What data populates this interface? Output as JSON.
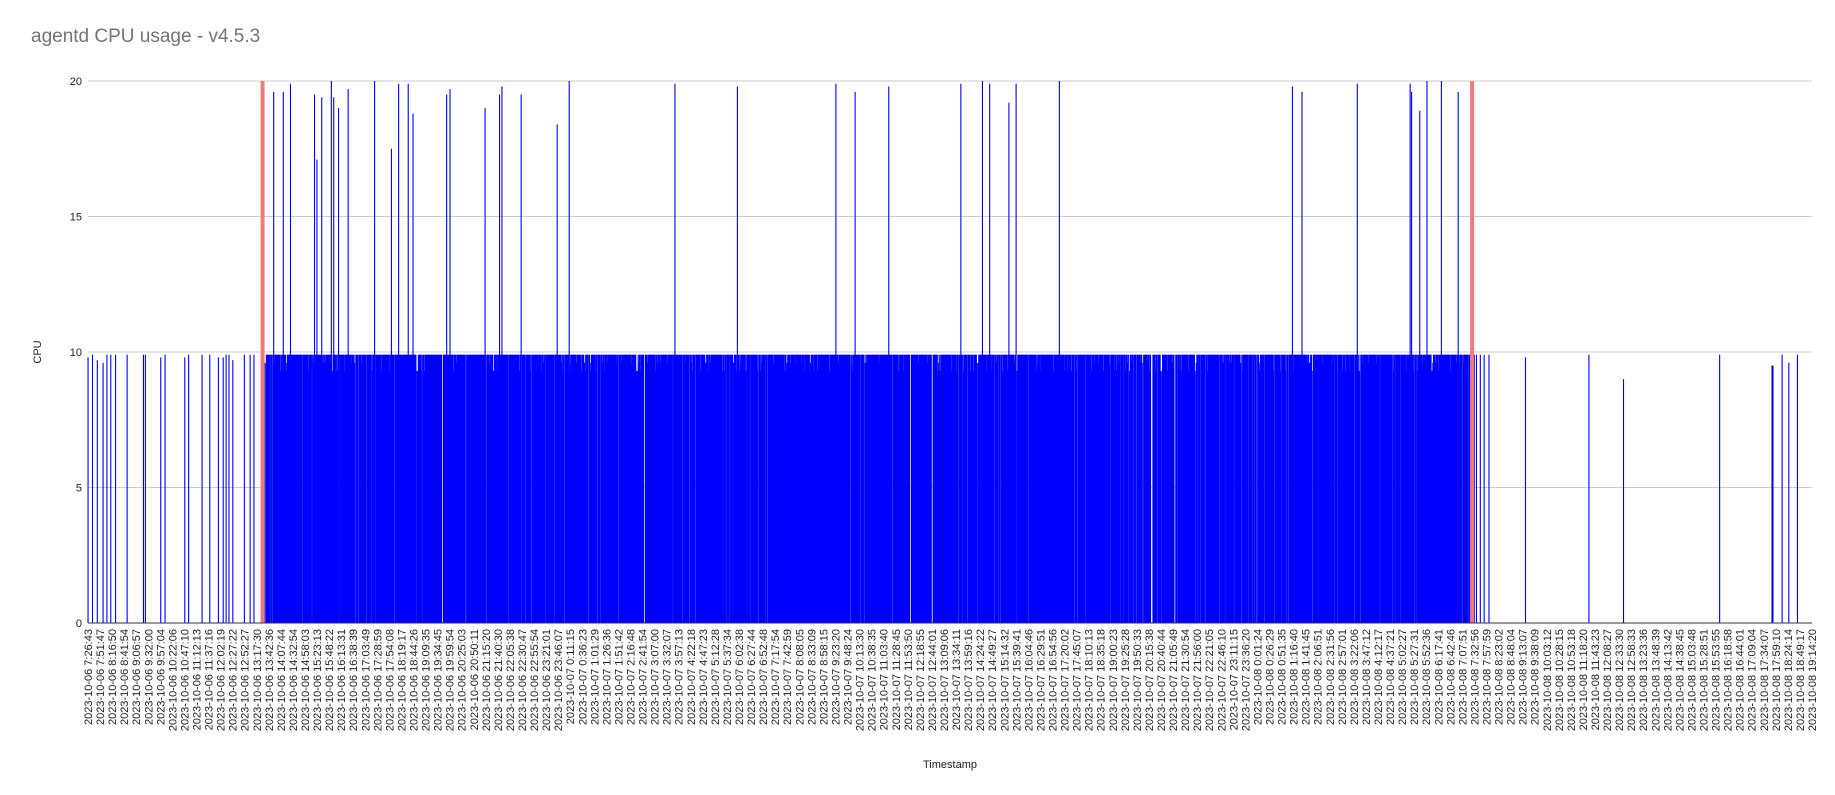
{
  "chart_data": {
    "type": "bar",
    "title": "agentd CPU usage - v4.5.3",
    "xlabel": "Timestamp",
    "ylabel": "CPU",
    "ylim": [
      0,
      20
    ],
    "yticks": [
      0,
      5,
      10,
      15,
      20
    ],
    "grid": true,
    "legend": "none",
    "bar_color": "#0000ff",
    "marker_color": "#ef7a7a",
    "xlim": [
      "2023-10-06 7:26:43",
      "2023-10-08 19:14:20"
    ],
    "x_tick_labels": [
      "2023-10-06 7:26:43",
      "2023-10-06 7:51:47",
      "2023-10-06 8:16:50",
      "2023-10-06 8:41:54",
      "2023-10-06 9:06:57",
      "2023-10-06 9:32:00",
      "2023-10-06 9:57:04",
      "2023-10-06 10:22:06",
      "2023-10-06 10:47:10",
      "2023-10-06 11:12:13",
      "2023-10-06 11:37:16",
      "2023-10-06 12:02:19",
      "2023-10-06 12:27:22",
      "2023-10-06 12:52:27",
      "2023-10-06 13:17:30",
      "2023-10-06 13:42:36",
      "2023-10-06 14:07:44",
      "2023-10-06 14:32:54",
      "2023-10-06 14:58:03",
      "2023-10-06 15:23:13",
      "2023-10-06 15:48:22",
      "2023-10-06 16:13:31",
      "2023-10-06 16:38:39",
      "2023-10-06 17:03:49",
      "2023-10-06 17:28:59",
      "2023-10-06 17:54:08",
      "2023-10-06 18:19:17",
      "2023-10-06 18:44:26",
      "2023-10-06 19:09:35",
      "2023-10-06 19:34:45",
      "2023-10-06 19:59:54",
      "2023-10-06 20:25:03",
      "2023-10-06 20:50:11",
      "2023-10-06 21:15:20",
      "2023-10-06 21:40:30",
      "2023-10-06 22:05:38",
      "2023-10-06 22:30:47",
      "2023-10-06 22:55:54",
      "2023-10-06 23:21:01",
      "2023-10-06 23:46:07",
      "2023-10-07 0:11:15",
      "2023-10-07 0:36:23",
      "2023-10-07 1:01:29",
      "2023-10-07 1:26:36",
      "2023-10-07 1:51:42",
      "2023-10-07 2:16:48",
      "2023-10-07 2:41:54",
      "2023-10-07 3:07:00",
      "2023-10-07 3:32:07",
      "2023-10-07 3:57:13",
      "2023-10-07 4:22:18",
      "2023-10-07 4:47:23",
      "2023-10-07 5:12:28",
      "2023-10-07 5:37:34",
      "2023-10-07 6:02:38",
      "2023-10-07 6:27:44",
      "2023-10-07 6:52:48",
      "2023-10-07 7:17:54",
      "2023-10-07 7:42:59",
      "2023-10-07 8:08:05",
      "2023-10-07 8:33:09",
      "2023-10-07 8:58:15",
      "2023-10-07 9:23:20",
      "2023-10-07 9:48:24",
      "2023-10-07 10:13:30",
      "2023-10-07 10:38:35",
      "2023-10-07 11:03:40",
      "2023-10-07 11:28:45",
      "2023-10-07 11:53:50",
      "2023-10-07 12:18:55",
      "2023-10-07 12:44:01",
      "2023-10-07 13:09:06",
      "2023-10-07 13:34:11",
      "2023-10-07 13:59:16",
      "2023-10-07 14:24:22",
      "2023-10-07 14:49:27",
      "2023-10-07 15:14:32",
      "2023-10-07 15:39:41",
      "2023-10-07 16:04:46",
      "2023-10-07 16:29:51",
      "2023-10-07 16:54:56",
      "2023-10-07 17:20:02",
      "2023-10-07 17:45:07",
      "2023-10-07 18:10:13",
      "2023-10-07 18:35:18",
      "2023-10-07 19:00:23",
      "2023-10-07 19:25:28",
      "2023-10-07 19:50:33",
      "2023-10-07 20:15:38",
      "2023-10-07 20:40:44",
      "2023-10-07 21:05:49",
      "2023-10-07 21:30:54",
      "2023-10-07 21:56:00",
      "2023-10-07 22:21:05",
      "2023-10-07 22:46:10",
      "2023-10-07 23:11:15",
      "2023-10-07 23:36:20",
      "2023-10-08 0:01:24",
      "2023-10-08 0:26:29",
      "2023-10-08 0:51:35",
      "2023-10-08 1:16:40",
      "2023-10-08 1:41:45",
      "2023-10-08 2:06:51",
      "2023-10-08 2:31:56",
      "2023-10-08 2:57:01",
      "2023-10-08 3:22:06",
      "2023-10-08 3:47:12",
      "2023-10-08 4:12:17",
      "2023-10-08 4:37:21",
      "2023-10-08 5:02:27",
      "2023-10-08 5:27:31",
      "2023-10-08 5:52:36",
      "2023-10-08 6:17:41",
      "2023-10-08 6:42:46",
      "2023-10-08 7:07:51",
      "2023-10-08 7:32:56",
      "2023-10-08 7:57:59",
      "2023-10-08 8:23:02",
      "2023-10-08 8:48:04",
      "2023-10-08 9:13:07",
      "2023-10-08 9:38:09",
      "2023-10-08 10:03:12",
      "2023-10-08 10:28:15",
      "2023-10-08 10:53:18",
      "2023-10-08 11:18:20",
      "2023-10-08 11:43:23",
      "2023-10-08 12:08:27",
      "2023-10-08 12:33:30",
      "2023-10-08 12:58:33",
      "2023-10-08 13:23:36",
      "2023-10-08 13:48:39",
      "2023-10-08 14:13:42",
      "2023-10-08 14:38:45",
      "2023-10-08 15:03:48",
      "2023-10-08 15:28:51",
      "2023-10-08 15:53:55",
      "2023-10-08 16:18:58",
      "2023-10-08 16:44:01",
      "2023-10-08 17:09:04",
      "2023-10-08 17:34:07",
      "2023-10-08 17:59:10",
      "2023-10-08 18:24:14",
      "2023-10-08 18:49:17",
      "2023-10-08 19:14:20"
    ],
    "markers": [
      {
        "x": "2023-10-06 13:30:00"
      },
      {
        "x": "2023-10-08 7:27:00"
      }
    ],
    "series": [
      {
        "bars": [
          {
            "x": "2023-10-06 7:26:43",
            "y": 9.8
          },
          {
            "x": "2023-10-06 7:36:00",
            "y": 9.9
          },
          {
            "x": "2023-10-06 7:46:00",
            "y": 9.7
          },
          {
            "x": "2023-10-06 7:58:00",
            "y": 9.6
          },
          {
            "x": "2023-10-06 8:06:00",
            "y": 9.9
          },
          {
            "x": "2023-10-06 8:14:00",
            "y": 9.9
          },
          {
            "x": "2023-10-06 8:24:00",
            "y": 9.9
          },
          {
            "x": "2023-10-06 8:48:00",
            "y": 9.9
          },
          {
            "x": "2023-10-06 9:22:00",
            "y": 9.9
          },
          {
            "x": "2023-10-06 9:26:00",
            "y": 9.9
          },
          {
            "x": "2023-10-06 9:58:00",
            "y": 9.8
          },
          {
            "x": "2023-10-06 10:07:00",
            "y": 9.9
          },
          {
            "x": "2023-10-06 10:48:00",
            "y": 9.8
          },
          {
            "x": "2023-10-06 10:56:00",
            "y": 9.9
          },
          {
            "x": "2023-10-06 11:24:00",
            "y": 9.9
          },
          {
            "x": "2023-10-06 11:40:00",
            "y": 9.9
          },
          {
            "x": "2023-10-06 11:58:00",
            "y": 9.8
          },
          {
            "x": "2023-10-06 12:08:00",
            "y": 9.8
          },
          {
            "x": "2023-10-06 12:14:00",
            "y": 9.9
          },
          {
            "x": "2023-10-06 12:20:00",
            "y": 9.9
          },
          {
            "x": "2023-10-06 12:28:00",
            "y": 9.7
          },
          {
            "x": "2023-10-06 12:52:00",
            "y": 9.9
          },
          {
            "x": "2023-10-06 13:04:00",
            "y": 9.9
          },
          {
            "x": "2023-10-06 13:12:00",
            "y": 9.9
          },
          {
            "x": "2023-10-08 7:36:00",
            "y": 9.9
          },
          {
            "x": "2023-10-08 7:44:00",
            "y": 9.9
          },
          {
            "x": "2023-10-08 7:52:00",
            "y": 9.9
          },
          {
            "x": "2023-10-08 8:02:00",
            "y": 9.9
          },
          {
            "x": "2023-10-08 9:18:00",
            "y": 9.8
          },
          {
            "x": "2023-10-08 11:30:00",
            "y": 9.9
          },
          {
            "x": "2023-10-08 12:42:00",
            "y": 9.0
          },
          {
            "x": "2023-10-08 16:02:00",
            "y": 9.9
          },
          {
            "x": "2023-10-08 17:51:00",
            "y": 9.5
          },
          {
            "x": "2023-10-08 17:53:00",
            "y": 9.5
          },
          {
            "x": "2023-10-08 18:12:00",
            "y": 9.9
          },
          {
            "x": "2023-10-08 18:26:00",
            "y": 9.6
          },
          {
            "x": "2023-10-08 18:44:00",
            "y": 9.9
          }
        ],
        "dense_start": "2023-10-06 13:34:00",
        "dense_end": "2023-10-08 7:32:00",
        "dense_base": 9.9,
        "peaks": [
          {
            "x": "2023-10-06 13:53:00",
            "y": 19.6
          },
          {
            "x": "2023-10-06 14:13:00",
            "y": 19.6
          },
          {
            "x": "2023-10-06 14:28:00",
            "y": 19.9
          },
          {
            "x": "2023-10-06 15:18:00",
            "y": 19.5
          },
          {
            "x": "2023-10-06 15:23:00",
            "y": 17.1
          },
          {
            "x": "2023-10-06 15:33:00",
            "y": 19.4
          },
          {
            "x": "2023-10-06 15:53:00",
            "y": 20.0
          },
          {
            "x": "2023-10-06 15:58:00",
            "y": 19.4
          },
          {
            "x": "2023-10-06 16:08:00",
            "y": 19.0
          },
          {
            "x": "2023-10-06 16:28:00",
            "y": 19.7
          },
          {
            "x": "2023-10-06 17:23:00",
            "y": 20.0
          },
          {
            "x": "2023-10-06 17:58:00",
            "y": 17.5
          },
          {
            "x": "2023-10-06 18:13:00",
            "y": 19.9
          },
          {
            "x": "2023-10-06 18:33:00",
            "y": 19.9
          },
          {
            "x": "2023-10-06 18:43:00",
            "y": 18.8
          },
          {
            "x": "2023-10-06 19:53:00",
            "y": 19.5
          },
          {
            "x": "2023-10-06 20:00:00",
            "y": 19.7
          },
          {
            "x": "2023-10-06 21:13:00",
            "y": 19.0
          },
          {
            "x": "2023-10-06 21:43:00",
            "y": 19.5
          },
          {
            "x": "2023-10-06 21:48:00",
            "y": 19.8
          },
          {
            "x": "2023-10-06 22:28:00",
            "y": 19.5
          },
          {
            "x": "2023-10-06 23:43:00",
            "y": 18.4
          },
          {
            "x": "2023-10-07 0:08:00",
            "y": 20.0
          },
          {
            "x": "2023-10-07 3:48:00",
            "y": 19.9
          },
          {
            "x": "2023-10-07 5:58:00",
            "y": 19.8
          },
          {
            "x": "2023-10-07 9:23:00",
            "y": 19.9
          },
          {
            "x": "2023-10-07 10:03:00",
            "y": 19.6
          },
          {
            "x": "2023-10-07 11:13:00",
            "y": 19.8
          },
          {
            "x": "2023-10-07 13:43:00",
            "y": 19.9
          },
          {
            "x": "2023-10-07 14:28:00",
            "y": 20.0
          },
          {
            "x": "2023-10-07 14:43:00",
            "y": 19.9
          },
          {
            "x": "2023-10-07 15:23:00",
            "y": 19.2
          },
          {
            "x": "2023-10-07 15:38:00",
            "y": 19.9
          },
          {
            "x": "2023-10-07 17:08:00",
            "y": 20.0
          },
          {
            "x": "2023-10-08 1:13:00",
            "y": 19.8
          },
          {
            "x": "2023-10-08 1:33:00",
            "y": 19.6
          },
          {
            "x": "2023-10-08 3:28:00",
            "y": 19.9
          },
          {
            "x": "2023-10-08 5:18:00",
            "y": 19.9
          },
          {
            "x": "2023-10-08 5:21:00",
            "y": 19.6
          },
          {
            "x": "2023-10-08 5:38:00",
            "y": 18.9
          },
          {
            "x": "2023-10-08 5:53:00",
            "y": 20.0
          },
          {
            "x": "2023-10-08 6:23:00",
            "y": 20.0
          },
          {
            "x": "2023-10-08 6:58:00",
            "y": 19.6
          }
        ]
      }
    ]
  }
}
